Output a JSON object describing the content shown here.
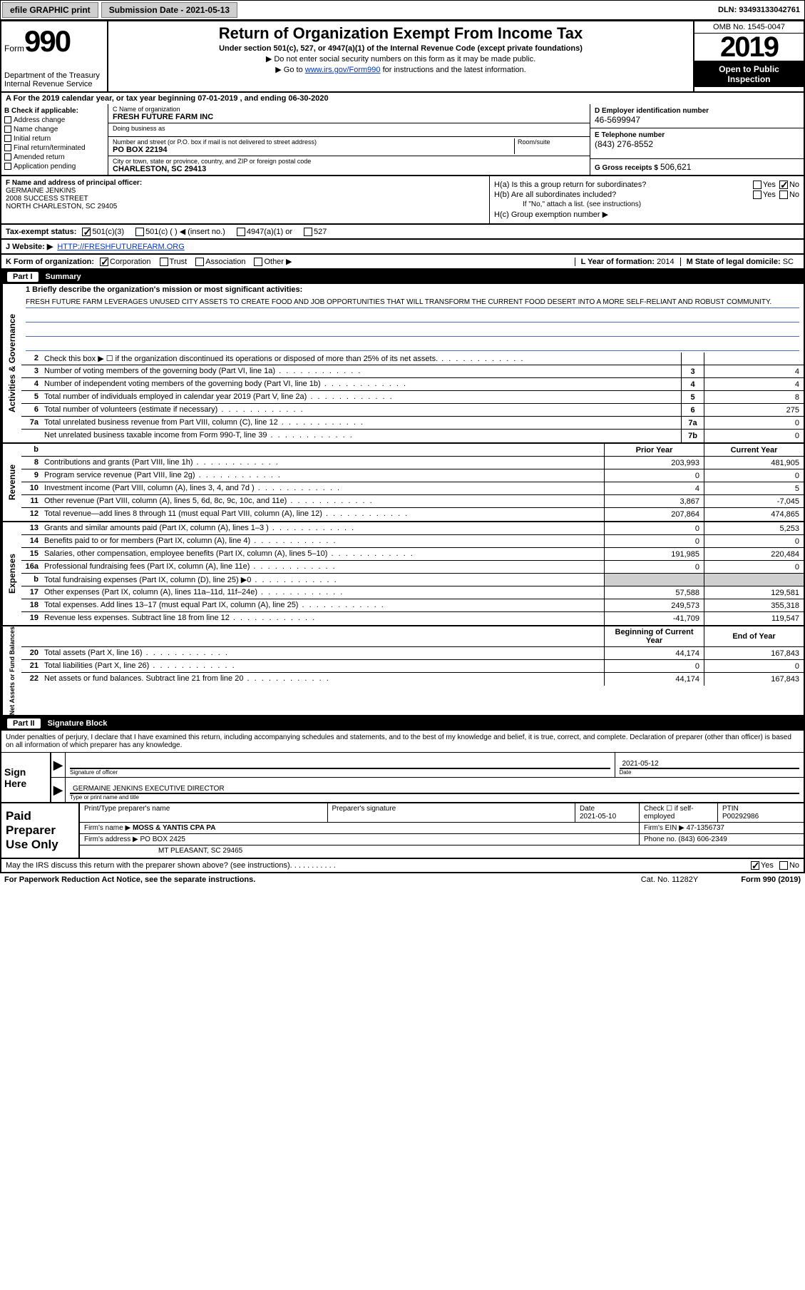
{
  "topbar": {
    "efile": "efile GRAPHIC print",
    "sub_label": "Submission Date - 2021-05-13",
    "dln": "DLN: 93493133042761"
  },
  "header": {
    "form_word": "Form",
    "form_num": "990",
    "dept": "Department of the Treasury\nInternal Revenue Service",
    "title": "Return of Organization Exempt From Income Tax",
    "sub1": "Under section 501(c), 527, or 4947(a)(1) of the Internal Revenue Code (except private foundations)",
    "sub2": "▶ Do not enter social security numbers on this form as it may be made public.",
    "sub3_pre": "▶ Go to ",
    "sub3_link": "www.irs.gov/Form990",
    "sub3_post": " for instructions and the latest information.",
    "omb": "OMB No. 1545-0047",
    "year": "2019",
    "open": "Open to Public Inspection"
  },
  "period": "A For the 2019 calendar year, or tax year beginning 07-01-2019    , and ending 06-30-2020",
  "block_b": {
    "label": "B Check if applicable:",
    "items": [
      "Address change",
      "Name change",
      "Initial return",
      "Final return/terminated",
      "Amended return",
      "Application pending"
    ]
  },
  "block_c": {
    "name_label": "C Name of organization",
    "name": "FRESH FUTURE FARM INC",
    "dba_label": "Doing business as",
    "dba": "",
    "addr_label": "Number and street (or P.O. box if mail is not delivered to street address)",
    "room_label": "Room/suite",
    "addr": "PO BOX 22194",
    "city_label": "City or town, state or province, country, and ZIP or foreign postal code",
    "city": "CHARLESTON, SC  29413"
  },
  "block_de": {
    "d_label": "D Employer identification number",
    "d_val": "46-5699947",
    "e_label": "E Telephone number",
    "e_val": "(843) 276-8552",
    "g_label": "G Gross receipts $",
    "g_val": "506,621"
  },
  "block_f": {
    "label": "F  Name and address of principal officer:",
    "name": "GERMAINE JENKINS",
    "addr1": "2008 SUCCESS STREET",
    "addr2": "NORTH CHARLESTON, SC  29405"
  },
  "block_h": {
    "ha": "H(a)  Is this a group return for subordinates?",
    "hb": "H(b)  Are all subordinates included?",
    "hb_note": "If \"No,\" attach a list. (see instructions)",
    "hc": "H(c)  Group exemption number ▶"
  },
  "tax_exempt": {
    "label": "Tax-exempt status:",
    "opts": [
      "501(c)(3)",
      "501(c) (  ) ◀ (insert no.)",
      "4947(a)(1) or",
      "527"
    ]
  },
  "website": {
    "label": "J    Website: ▶",
    "val": "HTTP://FRESHFUTUREFARM.ORG"
  },
  "block_k": {
    "label": "K Form of organization:",
    "opts": [
      "Corporation",
      "Trust",
      "Association",
      "Other ▶"
    ],
    "l_label": "L Year of formation:",
    "l_val": "2014",
    "m_label": "M State of legal domicile:",
    "m_val": "SC"
  },
  "part1": {
    "num": "Part I",
    "title": "Summary"
  },
  "mission": {
    "q": "1   Briefly describe the organization's mission or most significant activities:",
    "text": "FRESH FUTURE FARM LEVERAGES UNUSED CITY ASSETS TO CREATE FOOD AND JOB OPPORTUNITIES THAT WILL TRANSFORM THE CURRENT FOOD DESERT INTO A MORE SELF-RELIANT AND ROBUST COMMUNITY."
  },
  "lines_ag": [
    {
      "n": "2",
      "t": "Check this box ▶ ☐  if the organization discontinued its operations or disposed of more than 25% of its net assets.",
      "box": "",
      "v": ""
    },
    {
      "n": "3",
      "t": "Number of voting members of the governing body (Part VI, line 1a)",
      "box": "3",
      "v": "4"
    },
    {
      "n": "4",
      "t": "Number of independent voting members of the governing body (Part VI, line 1b)",
      "box": "4",
      "v": "4"
    },
    {
      "n": "5",
      "t": "Total number of individuals employed in calendar year 2019 (Part V, line 2a)",
      "box": "5",
      "v": "8"
    },
    {
      "n": "6",
      "t": "Total number of volunteers (estimate if necessary)",
      "box": "6",
      "v": "275"
    },
    {
      "n": "7a",
      "t": "Total unrelated business revenue from Part VIII, column (C), line 12",
      "box": "7a",
      "v": "0"
    },
    {
      "n": "",
      "t": "Net unrelated business taxable income from Form 990-T, line 39",
      "box": "7b",
      "v": "0"
    }
  ],
  "col_headers": {
    "prior": "Prior Year",
    "current": "Current Year"
  },
  "revenue": [
    {
      "n": "8",
      "t": "Contributions and grants (Part VIII, line 1h)",
      "p": "203,993",
      "c": "481,905"
    },
    {
      "n": "9",
      "t": "Program service revenue (Part VIII, line 2g)",
      "p": "0",
      "c": "0"
    },
    {
      "n": "10",
      "t": "Investment income (Part VIII, column (A), lines 3, 4, and 7d )",
      "p": "4",
      "c": "5"
    },
    {
      "n": "11",
      "t": "Other revenue (Part VIII, column (A), lines 5, 6d, 8c, 9c, 10c, and 11e)",
      "p": "3,867",
      "c": "-7,045"
    },
    {
      "n": "12",
      "t": "Total revenue—add lines 8 through 11 (must equal Part VIII, column (A), line 12)",
      "p": "207,864",
      "c": "474,865"
    }
  ],
  "expenses": [
    {
      "n": "13",
      "t": "Grants and similar amounts paid (Part IX, column (A), lines 1–3 )",
      "p": "0",
      "c": "5,253"
    },
    {
      "n": "14",
      "t": "Benefits paid to or for members (Part IX, column (A), line 4)",
      "p": "0",
      "c": "0"
    },
    {
      "n": "15",
      "t": "Salaries, other compensation, employee benefits (Part IX, column (A), lines 5–10)",
      "p": "191,985",
      "c": "220,484"
    },
    {
      "n": "16a",
      "t": "Professional fundraising fees (Part IX, column (A), line 11e)",
      "p": "0",
      "c": "0"
    },
    {
      "n": "b",
      "t": "Total fundraising expenses (Part IX, column (D), line 25) ▶0",
      "p": "",
      "c": "",
      "shaded": true
    },
    {
      "n": "17",
      "t": "Other expenses (Part IX, column (A), lines 11a–11d, 11f–24e)",
      "p": "57,588",
      "c": "129,581"
    },
    {
      "n": "18",
      "t": "Total expenses. Add lines 13–17 (must equal Part IX, column (A), line 25)",
      "p": "249,573",
      "c": "355,318"
    },
    {
      "n": "19",
      "t": "Revenue less expenses. Subtract line 18 from line 12",
      "p": "-41,709",
      "c": "119,547"
    }
  ],
  "net_headers": {
    "begin": "Beginning of Current Year",
    "end": "End of Year"
  },
  "netassets": [
    {
      "n": "20",
      "t": "Total assets (Part X, line 16)",
      "p": "44,174",
      "c": "167,843"
    },
    {
      "n": "21",
      "t": "Total liabilities (Part X, line 26)",
      "p": "0",
      "c": "0"
    },
    {
      "n": "22",
      "t": "Net assets or fund balances. Subtract line 21 from line 20",
      "p": "44,174",
      "c": "167,843"
    }
  ],
  "part2": {
    "num": "Part II",
    "title": "Signature Block"
  },
  "sig": {
    "decl": "Under penalties of perjury, I declare that I have examined this return, including accompanying schedules and statements, and to the best of my knowledge and belief, it is true, correct, and complete. Declaration of preparer (other than officer) is based on all information of which preparer has any knowledge.",
    "sign_here": "Sign Here",
    "officer_sig": "Signature of officer",
    "date_label": "Date",
    "date_val": "2021-05-12",
    "name_title": "GERMAINE JENKINS  EXECUTIVE DIRECTOR",
    "name_title_label": "Type or print name and title"
  },
  "prep": {
    "label": "Paid Preparer Use Only",
    "r1": {
      "c1": "Print/Type preparer's name",
      "c2": "Preparer's signature",
      "c3_l": "Date",
      "c3_v": "2021-05-10",
      "c4": "Check ☐ if self-employed",
      "c5_l": "PTIN",
      "c5_v": "P00292986"
    },
    "r2": {
      "l": "Firm's name    ▶",
      "v": "MOSS & YANTIS CPA PA",
      "r_l": "Firm's EIN ▶",
      "r_v": "47-1356737"
    },
    "r3": {
      "l": "Firm's address ▶",
      "v1": "PO BOX 2425",
      "v2": "MT PLEASANT, SC  29465",
      "r_l": "Phone no.",
      "r_v": "(843) 606-2349"
    }
  },
  "discuss": "May the IRS discuss this return with the preparer shown above? (see instructions)",
  "bottom": {
    "reduction": "For Paperwork Reduction Act Notice, see the separate instructions.",
    "cat": "Cat. No. 11282Y",
    "form": "Form 990 (2019)"
  }
}
